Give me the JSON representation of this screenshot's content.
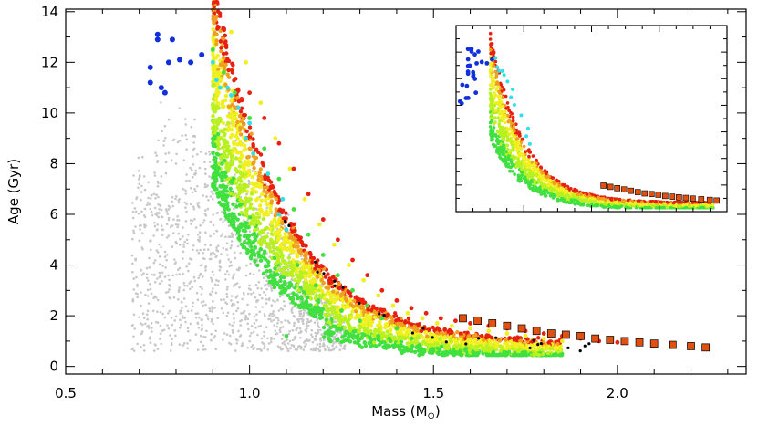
{
  "chart_data": {
    "type": "scatter",
    "title": "",
    "xlabel": "Mass (M⊙)",
    "xlabel_text": "Mass (M",
    "xlabel_symbol": "⊙",
    "xlabel_close": ")",
    "ylabel": "Age (Gyr)",
    "xlim": [
      0.5,
      2.35
    ],
    "ylim": [
      -0.3,
      14.1
    ],
    "xticks": [
      {
        "value": 0.5,
        "label": "0.5"
      },
      {
        "value": 1.0,
        "label": "1.0"
      },
      {
        "value": 1.5,
        "label": "1.5"
      },
      {
        "value": 2.0,
        "label": "2.0"
      }
    ],
    "yticks": [
      {
        "value": 0,
        "label": "0"
      },
      {
        "value": 2,
        "label": "2"
      },
      {
        "value": 4,
        "label": "4"
      },
      {
        "value": 6,
        "label": "6"
      },
      {
        "value": 8,
        "label": "8"
      },
      {
        "value": 10,
        "label": "10"
      },
      {
        "value": 12,
        "label": "12"
      },
      {
        "value": 14,
        "label": "14"
      }
    ],
    "colors": {
      "background_cloud": "#c8c8c8",
      "blue": "#1030e0",
      "cyan": "#30e0e8",
      "green": "#40e040",
      "yellow_green": "#b8f020",
      "yellow": "#f0f020",
      "orange": "#f0a020",
      "red": "#e82010",
      "black": "#000000"
    },
    "series": [
      {
        "name": "grey field stars",
        "color": "#c8c8c8",
        "x": [
          0.7,
          0.74,
          0.76,
          0.78,
          0.8,
          0.8,
          0.82,
          0.84,
          0.85,
          0.86,
          0.88,
          0.88,
          0.9,
          0.9,
          0.92,
          0.92,
          0.94,
          0.94,
          0.95,
          0.96,
          0.97,
          0.98,
          0.99,
          1.0,
          1.0,
          1.02,
          1.02,
          1.04,
          1.05,
          1.06,
          1.07,
          1.08,
          1.09,
          1.1,
          1.12,
          1.14,
          1.16,
          1.18,
          1.2,
          1.22,
          0.83,
          0.87,
          0.91,
          0.95,
          0.99,
          1.03,
          1.07,
          1.11,
          1.15,
          1.19
        ],
        "y": [
          7.2,
          6.8,
          7.5,
          6.2,
          8.0,
          5.6,
          7.0,
          6.4,
          8.6,
          5.2,
          7.8,
          4.8,
          6.6,
          9.2,
          5.8,
          8.2,
          4.4,
          7.4,
          9.6,
          6.0,
          3.8,
          8.8,
          5.0,
          7.2,
          3.2,
          6.2,
          2.6,
          5.4,
          4.2,
          3.0,
          6.8,
          2.2,
          4.6,
          3.6,
          2.0,
          2.8,
          1.6,
          2.4,
          1.2,
          1.8,
          5.0,
          4.0,
          3.4,
          2.6,
          2.0,
          1.6,
          1.4,
          1.0,
          0.8,
          0.6
        ]
      },
      {
        "name": "blue stars",
        "color": "#1030e0",
        "x": [
          0.73,
          0.73,
          0.75,
          0.75,
          0.76,
          0.77,
          0.78,
          0.79,
          0.81,
          0.84,
          0.87
        ],
        "y": [
          11.8,
          11.2,
          12.9,
          13.1,
          11.0,
          10.8,
          12.0,
          12.9,
          12.1,
          12.0,
          12.3
        ]
      },
      {
        "name": "cyan stars",
        "color": "#30e0e8",
        "x": [
          0.9,
          0.91,
          0.92,
          0.94,
          0.95,
          0.97,
          1.0,
          1.01,
          1.05,
          1.08,
          1.1,
          1.09,
          0.99
        ],
        "y": [
          12.0,
          11.3,
          11.0,
          11.0,
          10.7,
          10.2,
          9.6,
          8.4,
          7.6,
          6.0,
          5.4,
          6.6,
          9.0
        ]
      },
      {
        "name": "green stars",
        "color": "#40e040",
        "x": [
          0.9,
          0.93,
          0.96,
          1.0,
          1.04,
          1.08,
          1.12,
          1.16,
          1.2,
          1.24,
          1.28,
          1.32,
          1.36,
          1.4,
          1.44,
          1.3,
          1.35,
          1.25,
          1.18,
          1.13,
          1.38,
          1.42,
          1.46,
          1.1,
          1.22
        ],
        "y": [
          12.5,
          11.6,
          10.8,
          9.8,
          8.6,
          7.4,
          6.2,
          5.2,
          4.4,
          3.6,
          3.0,
          2.4,
          1.9,
          1.5,
          1.1,
          1.8,
          1.2,
          2.2,
          3.2,
          4.0,
          0.8,
          0.6,
          0.8,
          1.2,
          1.0
        ]
      },
      {
        "name": "yellow stars",
        "color": "#f0f020",
        "x": [
          0.95,
          0.99,
          1.03,
          1.07,
          1.11,
          1.15,
          1.19,
          1.23,
          1.27,
          1.31,
          1.35,
          1.39,
          1.43,
          1.47,
          1.51,
          1.55,
          1.6,
          1.65,
          1.7,
          1.75,
          1.8,
          1.85,
          1.33,
          1.41,
          1.49
        ],
        "y": [
          13.2,
          12.0,
          10.4,
          9.0,
          7.8,
          6.6,
          5.6,
          4.8,
          4.0,
          3.4,
          2.8,
          2.4,
          2.1,
          1.9,
          1.7,
          1.6,
          1.5,
          1.4,
          1.3,
          1.2,
          1.1,
          1.0,
          1.6,
          1.4,
          1.0
        ]
      },
      {
        "name": "red stars",
        "color": "#e82010",
        "x": [
          1.0,
          1.04,
          1.08,
          1.12,
          1.16,
          1.2,
          1.24,
          1.28,
          1.32,
          1.36,
          1.4,
          1.44,
          1.48,
          1.52,
          1.56,
          1.6,
          1.65,
          1.7,
          1.75,
          1.8,
          1.85,
          1.9,
          1.95,
          2.0
        ],
        "y": [
          10.8,
          9.8,
          8.8,
          7.8,
          6.8,
          5.8,
          5.0,
          4.2,
          3.6,
          3.0,
          2.6,
          2.3,
          2.1,
          1.9,
          1.8,
          1.7,
          1.6,
          1.5,
          1.4,
          1.3,
          1.2,
          1.1,
          1.0,
          0.95
        ]
      },
      {
        "name": "square markers",
        "color": "#e05010",
        "marker": "square",
        "x": [
          1.58,
          1.62,
          1.66,
          1.7,
          1.74,
          1.78,
          1.82,
          1.86,
          1.9,
          1.94,
          1.98,
          2.02,
          2.06,
          2.1,
          2.15,
          2.2,
          2.24
        ],
        "y": [
          1.9,
          1.8,
          1.7,
          1.6,
          1.5,
          1.4,
          1.3,
          1.25,
          1.2,
          1.1,
          1.05,
          1.0,
          0.95,
          0.9,
          0.85,
          0.8,
          0.75
        ]
      }
    ],
    "inset": {
      "type": "scatter",
      "note": "zoomed view of the same distribution, no tick labels"
    }
  }
}
